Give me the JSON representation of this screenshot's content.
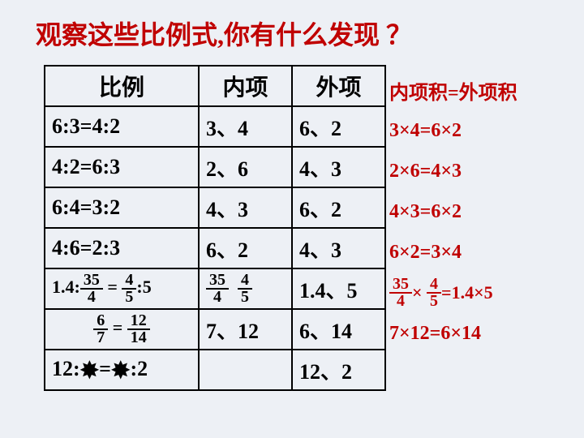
{
  "title": "观察这些比例式,你有什么发现 ？",
  "headers": {
    "c1": "比例",
    "c2": "内项",
    "c3": "外项"
  },
  "rows": [
    {
      "ratio": "6:3=4:2",
      "inner": "3、4",
      "outer": "6、2",
      "eq": "3×4=6×2"
    },
    {
      "ratio": "4:2=6:3",
      "inner": "2、6",
      "outer": "4、3",
      "eq": "2×6=4×3"
    },
    {
      "ratio": "6:4=3:2",
      "inner": "4、3",
      "outer": "6、2",
      "eq": "4×3=6×2"
    },
    {
      "ratio": "4:6=2:3",
      "inner": "6、2",
      "outer": "4、3",
      "eq": "6×2=3×4"
    }
  ],
  "row5": {
    "prefix": "1.4:",
    "f1n": "35",
    "f1d": "4",
    "mid": " = ",
    "f2n": "4",
    "f2d": "5",
    "suffix": ":5",
    "inner_f1n": "35",
    "inner_f1d": "4",
    "inner_f2n": "4",
    "inner_f2d": "5",
    "outer": "1.4、5",
    "eq_f1n": "35",
    "eq_f1d": "4",
    "eq_mid": "×",
    "eq_f2n": "4",
    "eq_f2d": "5",
    "eq_suffix": "=1.4×5"
  },
  "row6": {
    "f1n": "6",
    "f1d": "7",
    "mid": " = ",
    "f2n": "12",
    "f2d": "14",
    "inner": "7、12",
    "outer": "6、14",
    "eq": "7×12=6×14"
  },
  "row7": {
    "pre": "12:",
    "mid": "=",
    "suf": ":2",
    "outer": "12、2"
  },
  "red_header": "内项积=外项积",
  "colors": {
    "red": "#c00000",
    "black": "#000000",
    "bg": "#edf0f5"
  }
}
